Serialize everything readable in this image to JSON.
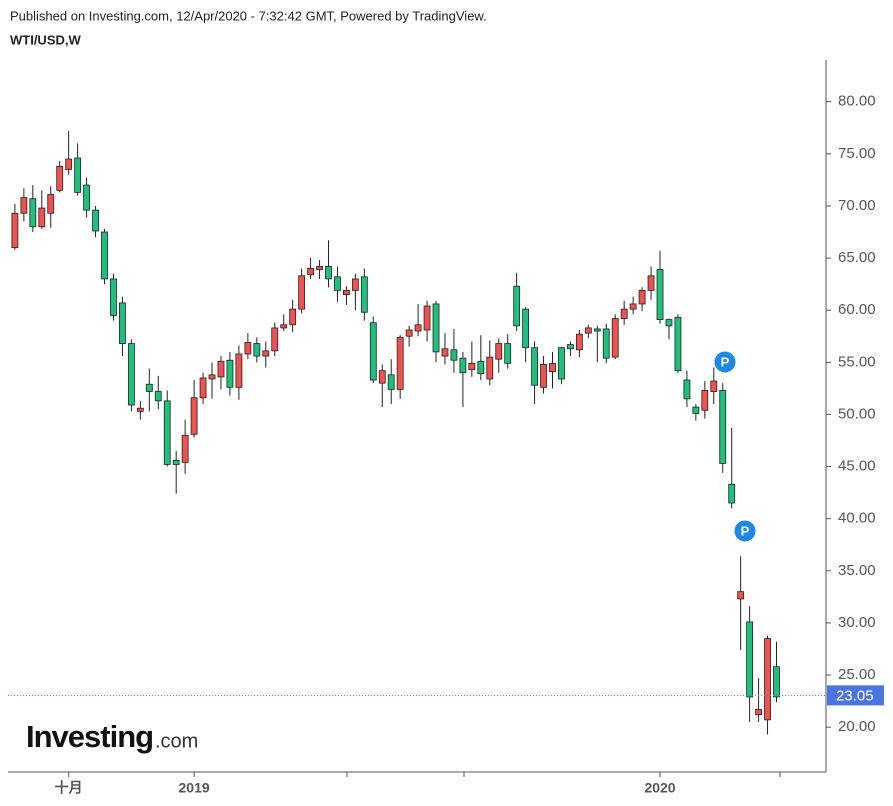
{
  "header": {
    "published": "Published on Investing.com, 12/Apr/2020 - 7:32:42 GMT, Powered by TradingView.",
    "symbol": "WTI/USD,W"
  },
  "logo": {
    "name": "Investing",
    "suffix": ".com"
  },
  "chart_data": {
    "type": "candlestick",
    "categories": [
      null,
      null,
      null,
      null,
      null,
      null,
      "十月",
      null,
      null,
      null,
      null,
      null,
      null,
      null,
      null,
      null,
      null,
      null,
      null,
      null,
      "2019",
      null,
      null,
      null,
      null,
      null,
      null,
      null,
      null,
      null,
      null,
      null,
      null,
      null,
      null,
      null,
      null,
      null,
      null,
      null,
      null,
      null,
      null,
      null,
      null,
      null,
      null,
      null,
      null,
      null,
      null,
      null,
      null,
      null,
      null,
      null,
      null,
      null,
      null,
      null,
      null,
      null,
      null,
      null,
      null,
      null,
      null,
      null,
      null,
      null,
      null,
      null,
      "2020",
      null,
      null,
      null,
      null,
      null,
      null,
      null,
      null,
      null,
      null,
      null,
      null,
      null
    ],
    "open": [
      66,
      69.3,
      70.7,
      68,
      69.3,
      71.5,
      73.5,
      74.6,
      72,
      69.6,
      67.5,
      63,
      60.7,
      56.8,
      50.3,
      52.9,
      52.2,
      51.3,
      45.6,
      45.4,
      48.1,
      51.6,
      53.4,
      53.6,
      55.2,
      52.6,
      55.8,
      56.8,
      55.6,
      56.1,
      58.3,
      58.6,
      60.1,
      63.4,
      63.9,
      64.2,
      63.2,
      61.5,
      61.9,
      63.2,
      58.8,
      53,
      53.8,
      52.4,
      57.5,
      58,
      58.1,
      60.6,
      55.6,
      56.2,
      55.4,
      54.3,
      55.1,
      53.4,
      55.3,
      56.8,
      62.3,
      60.1,
      56.4,
      52.6,
      54.1,
      56.4,
      56.7,
      56.2,
      57.8,
      58.2,
      58.2,
      55.5,
      59.2,
      60.1,
      60.6,
      61.9,
      63.9,
      59.1,
      59.3,
      53.3,
      50.7,
      50.4,
      52.2,
      52.3,
      43.3,
      32.3,
      30.1,
      21.2,
      20.7,
      25.8
    ],
    "high": [
      70.2,
      71.7,
      72,
      71.5,
      71.9,
      74.3,
      77.2,
      76,
      72.7,
      70,
      67.8,
      63.5,
      61.3,
      57.2,
      51.3,
      54.4,
      53.7,
      52.3,
      46.5,
      49.5,
      53.3,
      54,
      55,
      55.6,
      56,
      56.6,
      57.8,
      57.4,
      57,
      58.8,
      59.6,
      61,
      64,
      65,
      64.8,
      66.7,
      64.2,
      62.3,
      63.5,
      64,
      59.4,
      54.8,
      55.3,
      57.6,
      58.5,
      60.6,
      60.9,
      60.9,
      57.8,
      58.2,
      56,
      57,
      57.6,
      57.1,
      57.3,
      57.7,
      63.6,
      60.3,
      57,
      55.6,
      56,
      56.5,
      57,
      58.1,
      58.6,
      58.5,
      58.7,
      59.6,
      60.9,
      61.3,
      62.2,
      64.2,
      65.7,
      59.2,
      59.6,
      54.2,
      51,
      53.2,
      54.5,
      53,
      48.7,
      36.4,
      31.6,
      24.7,
      28.8,
      28.2
    ],
    "low": [
      65.8,
      68.5,
      67.5,
      67.8,
      67.9,
      71.3,
      73,
      71,
      68.9,
      67,
      62.5,
      59,
      55.6,
      50.3,
      49.5,
      50.3,
      50.5,
      45,
      42.4,
      44.3,
      47.8,
      51,
      51.5,
      52.4,
      51.8,
      51.4,
      55.3,
      55,
      54.5,
      55.6,
      58,
      57.9,
      59.7,
      63,
      63,
      62.2,
      60.8,
      60.5,
      60,
      59,
      53,
      50.7,
      51,
      51.5,
      56.5,
      57.5,
      57,
      55,
      54.8,
      54,
      50.7,
      53.6,
      53.3,
      52.8,
      54,
      54.4,
      58,
      55,
      51,
      52,
      52.5,
      52.9,
      55.6,
      55.5,
      57.3,
      55,
      54.9,
      55.3,
      58.6,
      59.6,
      59.9,
      61,
      58.7,
      57.2,
      54,
      50.7,
      49.4,
      49.6,
      51,
      44.4,
      41,
      27.4,
      20.5,
      20.5,
      19.3,
      22.4
    ],
    "close": [
      69.3,
      70.8,
      68,
      69.8,
      71.1,
      73.8,
      74.5,
      71.3,
      69.6,
      67.6,
      63,
      59.5,
      56.8,
      50.9,
      50.6,
      52.2,
      51.3,
      45.2,
      45.2,
      48,
      51.6,
      53.5,
      53.8,
      55.1,
      52.6,
      55.8,
      56.9,
      55.6,
      56.1,
      58.3,
      58.6,
      60.1,
      63.3,
      64,
      64.2,
      63,
      61.9,
      61.9,
      63,
      59.8,
      53.3,
      54.2,
      52.4,
      57.4,
      58.1,
      58.6,
      60.4,
      56,
      56.3,
      55.2,
      54,
      54.9,
      53.9,
      55.5,
      56.8,
      54.9,
      58.5,
      56.4,
      52.8,
      54.8,
      54.9,
      53.4,
      56.3,
      57.7,
      58.3,
      58,
      55.4,
      59.2,
      60.1,
      60.6,
      61.9,
      63.3,
      59.1,
      58.5,
      54.2,
      51.5,
      50.1,
      52.3,
      53.2,
      45.3,
      41.5,
      33,
      22.9,
      21.7,
      28.5,
      22.9
    ],
    "up_color": "#f0524f",
    "down_color": "#1fbf7e",
    "last_price": 23.05,
    "last_price_color": "#4a74e0",
    "markers": [
      "P",
      "P"
    ],
    "ylim": [
      15.7,
      84
    ],
    "yticks": [
      {
        "value": 20,
        "label": "20.00"
      },
      {
        "value": 25,
        "label": "25.00"
      },
      {
        "value": 30,
        "label": "30.00"
      },
      {
        "value": 35,
        "label": "35.00"
      },
      {
        "value": 40,
        "label": "40.00"
      },
      {
        "value": 45,
        "label": "45.00"
      },
      {
        "value": 50,
        "label": "50.00"
      },
      {
        "value": 55,
        "label": "55.00"
      },
      {
        "value": 60,
        "label": "60.00"
      },
      {
        "value": 65,
        "label": "65.00"
      },
      {
        "value": 70,
        "label": "70.00"
      },
      {
        "value": 75,
        "label": "75.00"
      },
      {
        "value": 80,
        "label": "80.00"
      }
    ]
  }
}
